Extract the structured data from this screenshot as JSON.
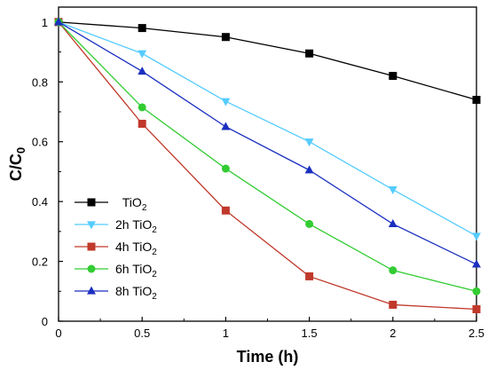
{
  "chart_data": {
    "type": "line",
    "xlabel": "Time (h)",
    "ylabel": {
      "main": "C/C",
      "sub": "0"
    },
    "xlim": [
      0,
      2.5
    ],
    "ylim": [
      0,
      1.05
    ],
    "x_ticks": [
      "0",
      "0.5",
      "1",
      "1.5",
      "2",
      "2.5"
    ],
    "y_ticks": [
      "0",
      "0.2",
      "0.4",
      "0.6",
      "0.8",
      "1"
    ],
    "x": [
      0,
      0.5,
      1,
      1.5,
      2,
      2.5
    ],
    "legend_position": "bottom-left",
    "series": [
      {
        "name": "TiO2",
        "label_prefix": "",
        "label_main": "TiO",
        "label_sub": "2",
        "color": "#000000",
        "marker": "square",
        "values": [
          1.0,
          0.98,
          0.95,
          0.895,
          0.82,
          0.74
        ]
      },
      {
        "name": "2h TiO2",
        "label_prefix": "2h ",
        "label_main": "TiO",
        "label_sub": "2",
        "color": "#55ccff",
        "marker": "triangle-down",
        "values": [
          1.0,
          0.895,
          0.735,
          0.6,
          0.44,
          0.285
        ]
      },
      {
        "name": "4h TiO2",
        "label_prefix": "4h ",
        "label_main": "TiO",
        "label_sub": "2",
        "color": "#c0392b",
        "marker": "square",
        "values": [
          1.0,
          0.66,
          0.37,
          0.15,
          0.055,
          0.04
        ]
      },
      {
        "name": "6h TiO2",
        "label_prefix": "6h ",
        "label_main": "TiO",
        "label_sub": "2",
        "color": "#33cc33",
        "marker": "circle",
        "values": [
          1.0,
          0.715,
          0.51,
          0.325,
          0.17,
          0.1
        ]
      },
      {
        "name": "8h TiO2",
        "label_prefix": "8h ",
        "label_main": "TiO",
        "label_sub": "2",
        "color": "#1a2fbf",
        "marker": "triangle-up",
        "values": [
          1.0,
          0.835,
          0.65,
          0.505,
          0.325,
          0.19
        ]
      }
    ]
  }
}
